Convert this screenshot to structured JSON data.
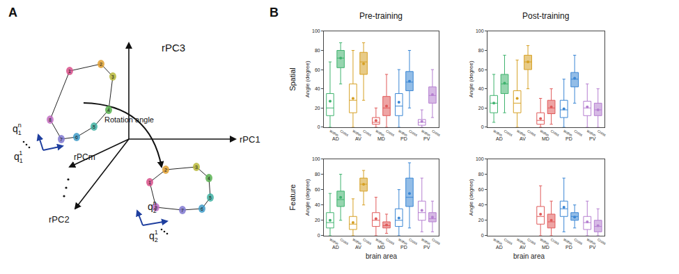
{
  "panel_a": {
    "label": "A",
    "axes": [
      "rPC3",
      "rPC1",
      "rPC2",
      "rPCm"
    ],
    "rotation_label": "Rotation angle",
    "loop_nodes": [
      "1",
      "2",
      "3",
      "4",
      "5",
      "6",
      "7",
      "8"
    ],
    "vectors": [
      {
        "base": "q",
        "sub": "1",
        "sup": "n"
      },
      {
        "base": "q",
        "sub": "1",
        "sup": "1"
      },
      {
        "base": "q",
        "sub": "2",
        "sup": "n"
      },
      {
        "base": "q",
        "sub": "2",
        "sup": "1"
      }
    ]
  },
  "panel_b": {
    "label": "B",
    "column_titles": [
      "Pre-training",
      "Post-training"
    ],
    "row_titles": [
      "Spatial",
      "Feature"
    ]
  },
  "chart_data": [
    {
      "type": "box",
      "ylabel": "Angle (degree)",
      "categories": [
        "AD",
        "AV",
        "MD",
        "PD",
        "PV"
      ],
      "colors": [
        "#3fb36e",
        "#d6a024",
        "#e05a5a",
        "#3a86d4",
        "#b57fd0"
      ],
      "ylim": [
        0,
        100
      ],
      "yticks": [
        0,
        20,
        40,
        60,
        80,
        100
      ],
      "grid": false,
      "series": [
        {
          "name": "Within",
          "lowerfence": [
            0,
            0,
            0,
            0,
            0
          ],
          "q1": [
            12,
            15,
            3,
            12,
            2
          ],
          "median": [
            20,
            28,
            5,
            22,
            5
          ],
          "q3": [
            35,
            45,
            10,
            35,
            8
          ],
          "upperfence": [
            68,
            80,
            20,
            60,
            18
          ],
          "mean": [
            27,
            30,
            7,
            26,
            6
          ]
        },
        {
          "name": "Cross",
          "lowerfence": [
            45,
            28,
            0,
            20,
            10
          ],
          "q1": [
            62,
            55,
            12,
            38,
            25
          ],
          "median": [
            72,
            68,
            20,
            47,
            33
          ],
          "q3": [
            80,
            78,
            32,
            58,
            42
          ],
          "upperfence": [
            88,
            88,
            55,
            80,
            60
          ],
          "mean": [
            72,
            66,
            22,
            48,
            34
          ]
        }
      ]
    },
    {
      "type": "box",
      "ylabel": "Angle (degree)",
      "categories": [
        "AD",
        "AV",
        "MD",
        "PD",
        "PV"
      ],
      "colors": [
        "#3fb36e",
        "#d6a024",
        "#e05a5a",
        "#3a86d4",
        "#b57fd0"
      ],
      "ylim": [
        0,
        100
      ],
      "yticks": [
        0,
        20,
        40,
        60,
        80,
        100
      ],
      "grid": false,
      "series": [
        {
          "name": "Within",
          "lowerfence": [
            5,
            0,
            0,
            0,
            0
          ],
          "q1": [
            15,
            15,
            3,
            10,
            12
          ],
          "median": [
            25,
            25,
            7,
            18,
            20
          ],
          "q3": [
            33,
            38,
            15,
            28,
            27
          ],
          "upperfence": [
            55,
            70,
            30,
            50,
            45
          ],
          "mean": [
            25,
            30,
            9,
            19,
            21
          ]
        },
        {
          "name": "Cross",
          "lowerfence": [
            15,
            40,
            3,
            25,
            0
          ],
          "q1": [
            35,
            60,
            14,
            42,
            12
          ],
          "median": [
            45,
            68,
            20,
            50,
            18
          ],
          "q3": [
            55,
            75,
            28,
            57,
            25
          ],
          "upperfence": [
            75,
            85,
            40,
            75,
            40
          ],
          "mean": [
            46,
            68,
            21,
            51,
            18
          ]
        }
      ]
    },
    {
      "type": "box",
      "ylabel": "Angle (degree)",
      "xlabel": "brain area",
      "categories": [
        "AD",
        "AV",
        "MD",
        "PD",
        "PV"
      ],
      "colors": [
        "#3fb36e",
        "#d6a024",
        "#e05a5a",
        "#3a86d4",
        "#b57fd0"
      ],
      "ylim": [
        0,
        100
      ],
      "yticks": [
        0,
        20,
        40,
        60,
        80,
        100
      ],
      "grid": false,
      "series": [
        {
          "name": "Within",
          "lowerfence": [
            0,
            0,
            0,
            0,
            5
          ],
          "q1": [
            10,
            8,
            12,
            12,
            20
          ],
          "median": [
            17,
            15,
            20,
            20,
            30
          ],
          "q3": [
            30,
            25,
            30,
            35,
            45
          ],
          "upperfence": [
            55,
            48,
            50,
            60,
            75
          ],
          "mean": [
            20,
            17,
            22,
            23,
            33
          ]
        },
        {
          "name": "Cross",
          "lowerfence": [
            20,
            40,
            3,
            10,
            5
          ],
          "q1": [
            38,
            58,
            10,
            38,
            18
          ],
          "median": [
            47,
            67,
            13,
            50,
            22
          ],
          "q3": [
            58,
            75,
            18,
            75,
            30
          ],
          "upperfence": [
            80,
            85,
            28,
            95,
            45
          ],
          "mean": [
            50,
            67,
            14,
            55,
            24
          ]
        }
      ]
    },
    {
      "type": "box",
      "ylabel": "Angle (degree)",
      "xlabel": "brain area",
      "categories": [
        "AD",
        "AV",
        "MD",
        "PD",
        "PV"
      ],
      "colors": [
        "#3fb36e",
        "#d6a024",
        "#e05a5a",
        "#3a86d4",
        "#b57fd0"
      ],
      "ylim": [
        0,
        100
      ],
      "yticks": [
        0,
        20,
        40,
        60,
        80,
        100
      ],
      "grid": false,
      "series": [
        {
          "name": "Within",
          "lowerfence": [
            null,
            null,
            0,
            5,
            0
          ],
          "q1": [
            null,
            null,
            15,
            25,
            8
          ],
          "median": [
            null,
            null,
            25,
            35,
            17
          ],
          "q3": [
            null,
            null,
            38,
            45,
            25
          ],
          "upperfence": [
            null,
            null,
            65,
            75,
            45
          ],
          "mean": [
            null,
            null,
            28,
            37,
            18
          ]
        },
        {
          "name": "Cross",
          "lowerfence": [
            null,
            null,
            0,
            10,
            0
          ],
          "q1": [
            null,
            null,
            10,
            20,
            5
          ],
          "median": [
            null,
            null,
            18,
            25,
            12
          ],
          "q3": [
            null,
            null,
            28,
            30,
            20
          ],
          "upperfence": [
            null,
            null,
            45,
            40,
            35
          ],
          "mean": [
            null,
            null,
            20,
            24,
            13
          ]
        }
      ]
    }
  ]
}
